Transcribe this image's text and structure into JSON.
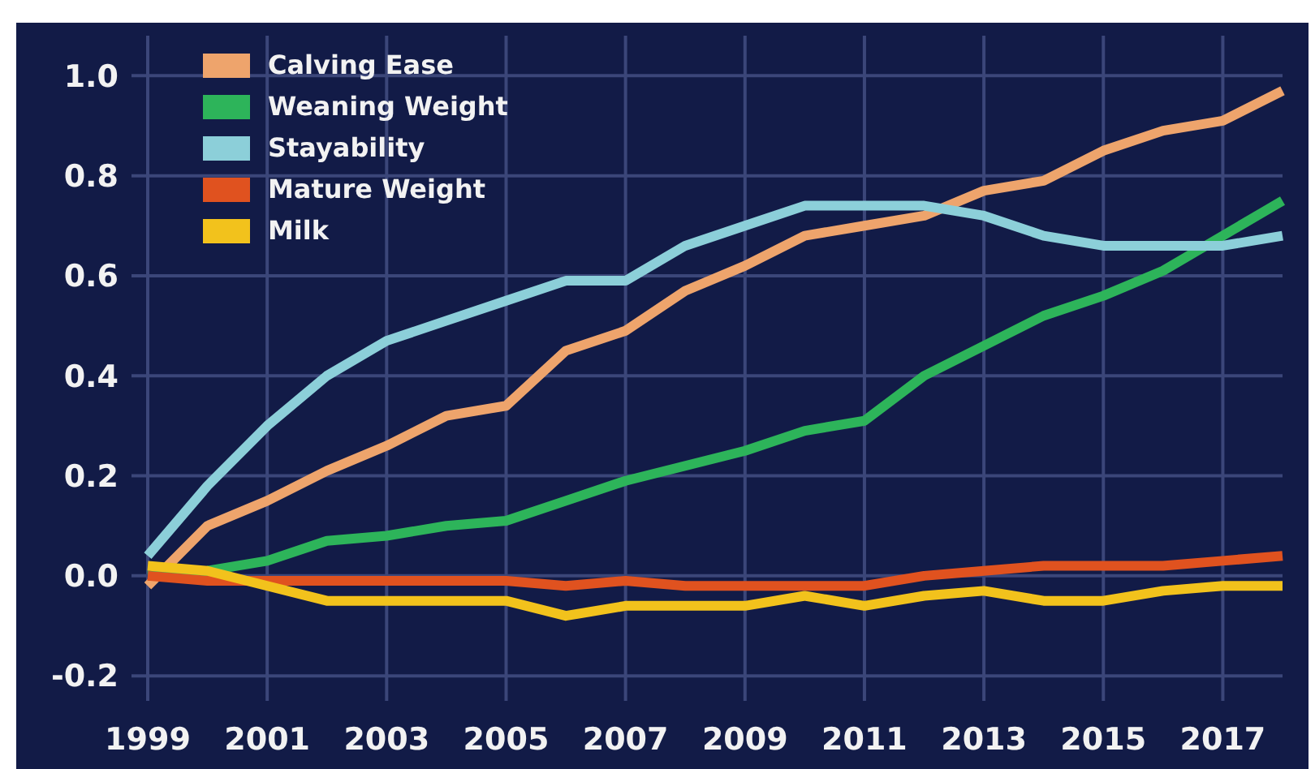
{
  "chart_data": {
    "type": "line",
    "x": [
      1999,
      2000,
      2001,
      2002,
      2003,
      2004,
      2005,
      2006,
      2007,
      2008,
      2009,
      2010,
      2011,
      2012,
      2013,
      2014,
      2015,
      2016,
      2017,
      2018
    ],
    "series": [
      {
        "name": "Calving Ease",
        "color": "#eea46c",
        "values": [
          -0.02,
          0.1,
          0.15,
          0.21,
          0.26,
          0.32,
          0.34,
          0.45,
          0.49,
          0.57,
          0.62,
          0.68,
          0.7,
          0.72,
          0.77,
          0.79,
          0.85,
          0.89,
          0.91,
          0.97
        ]
      },
      {
        "name": "Weaning Weight",
        "color": "#2db45a",
        "values": [
          0.0,
          0.01,
          0.03,
          0.07,
          0.08,
          0.1,
          0.11,
          0.15,
          0.19,
          0.22,
          0.25,
          0.29,
          0.31,
          0.4,
          0.46,
          0.52,
          0.56,
          0.61,
          0.68,
          0.75
        ]
      },
      {
        "name": "Stayability",
        "color": "#8ccfd9",
        "values": [
          0.04,
          0.18,
          0.3,
          0.4,
          0.47,
          0.51,
          0.55,
          0.59,
          0.59,
          0.66,
          0.7,
          0.74,
          0.74,
          0.74,
          0.72,
          0.68,
          0.66,
          0.66,
          0.66,
          0.68
        ]
      },
      {
        "name": "Mature Weight",
        "color": "#e0521f",
        "values": [
          0.0,
          -0.01,
          -0.01,
          -0.01,
          -0.01,
          -0.01,
          -0.01,
          -0.02,
          -0.01,
          -0.02,
          -0.02,
          -0.02,
          -0.02,
          0.0,
          0.01,
          0.02,
          0.02,
          0.02,
          0.03,
          0.04
        ]
      },
      {
        "name": "Milk",
        "color": "#f2c21c",
        "values": [
          0.02,
          0.01,
          -0.02,
          -0.05,
          -0.05,
          -0.05,
          -0.05,
          -0.08,
          -0.06,
          -0.06,
          -0.06,
          -0.04,
          -0.06,
          -0.04,
          -0.03,
          -0.05,
          -0.05,
          -0.03,
          -0.02,
          -0.02
        ]
      }
    ],
    "xlim": [
      1999,
      2018
    ],
    "xticks": [
      1999,
      2001,
      2003,
      2005,
      2007,
      2009,
      2011,
      2013,
      2015,
      2017
    ],
    "ylim": [
      -0.25,
      1.08
    ],
    "yticks": [
      {
        "value": -0.2,
        "label": "-0.2"
      },
      {
        "value": 0,
        "label": "0.0"
      },
      {
        "value": 0.2,
        "label": "0.2"
      },
      {
        "value": 0.4,
        "label": "0.4"
      },
      {
        "value": 0.6,
        "label": "0.6"
      },
      {
        "value": 0.8,
        "label": "0.8"
      },
      {
        "value": 1,
        "label": "1.0"
      }
    ],
    "grid": true,
    "legend": "top left",
    "marker": "none",
    "line_style": "solid"
  }
}
